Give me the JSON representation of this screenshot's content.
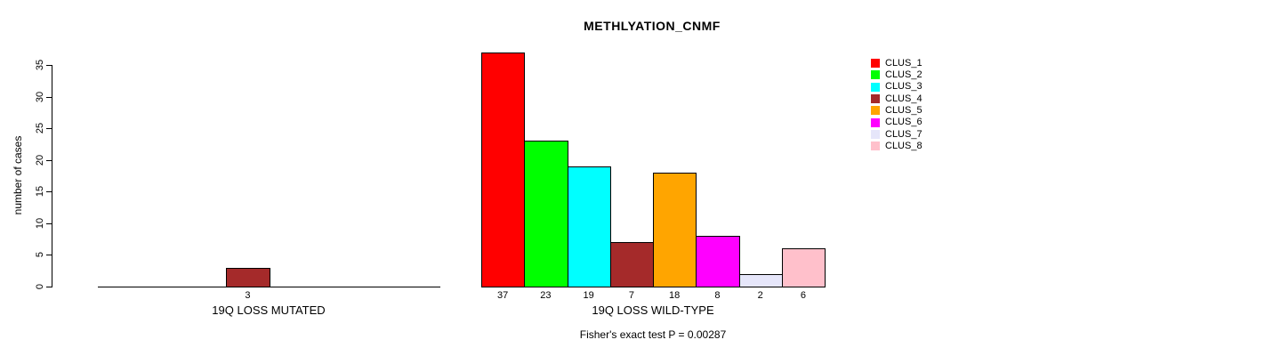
{
  "title": "METHLYATION_CNMF",
  "chart_data": {
    "type": "bar",
    "title": "METHLYATION_CNMF",
    "xlabel": "",
    "ylabel": "number of cases",
    "ylim": [
      0,
      35
    ],
    "yticks": [
      0,
      5,
      10,
      15,
      20,
      25,
      30,
      35
    ],
    "grid": false,
    "legend_position": "right",
    "clusters": [
      "CLUS_1",
      "CLUS_2",
      "CLUS_3",
      "CLUS_4",
      "CLUS_5",
      "CLUS_6",
      "CLUS_7",
      "CLUS_8"
    ],
    "colors": [
      "#FF0000",
      "#00FF00",
      "#00FFFF",
      "#A52A2A",
      "#FFA500",
      "#FF00FF",
      "#E6E6FA",
      "#FFC0CB"
    ],
    "groups": [
      {
        "label": "19Q LOSS MUTATED",
        "values": [
          0,
          0,
          0,
          3,
          0,
          0,
          0,
          0
        ],
        "value_labels": [
          "",
          "",
          "",
          "3",
          "",
          "",
          "",
          ""
        ]
      },
      {
        "label": "19Q LOSS WILD-TYPE",
        "values": [
          37,
          23,
          19,
          7,
          18,
          8,
          2,
          6
        ],
        "value_labels": [
          "37",
          "23",
          "19",
          "7",
          "18",
          "8",
          "2",
          "6"
        ]
      }
    ],
    "footnote": "Fisher's exact test P = 0.00287"
  }
}
